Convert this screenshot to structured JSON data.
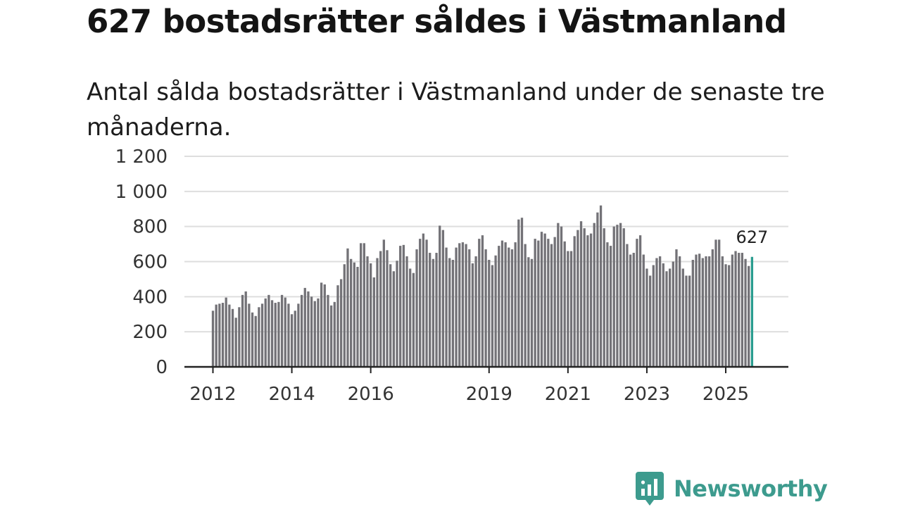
{
  "title": "627 bostadsrätter såldes i Västmanland",
  "subtitle": "Antal sålda bostadsrätter i Västmanland under de senaste tre månaderna.",
  "brand": {
    "name": "Newsworthy",
    "color": "#3d9b8e"
  },
  "colors": {
    "bar": "#737277",
    "highlight": "#2a9d8f",
    "grid": "#dedede",
    "axis": "#222222"
  },
  "chart_data": {
    "type": "bar",
    "title": "627 bostadsrätter såldes i Västmanland",
    "xlabel": "",
    "ylabel": "",
    "ylim": [
      0,
      1200
    ],
    "yticks": [
      0,
      200,
      400,
      600,
      800,
      1000,
      1200
    ],
    "ytick_labels": [
      "0",
      "200",
      "400",
      "600",
      "800",
      "1 000",
      "1 200"
    ],
    "xticks": [
      {
        "label": "2012",
        "index": 0
      },
      {
        "label": "2014",
        "index": 24
      },
      {
        "label": "2016",
        "index": 48
      },
      {
        "label": "2019",
        "index": 84
      },
      {
        "label": "2021",
        "index": 108
      },
      {
        "label": "2023",
        "index": 132
      },
      {
        "label": "2025",
        "index": 156
      }
    ],
    "start": "2012-01",
    "highlight_label": "627",
    "values": [
      320,
      355,
      360,
      365,
      395,
      355,
      330,
      280,
      340,
      410,
      430,
      360,
      310,
      290,
      340,
      360,
      390,
      410,
      380,
      365,
      370,
      410,
      395,
      360,
      300,
      320,
      360,
      410,
      450,
      430,
      400,
      375,
      390,
      480,
      470,
      410,
      350,
      370,
      465,
      500,
      585,
      675,
      615,
      595,
      570,
      705,
      705,
      630,
      590,
      510,
      620,
      660,
      725,
      665,
      585,
      545,
      605,
      690,
      695,
      630,
      560,
      535,
      670,
      730,
      760,
      725,
      650,
      615,
      650,
      805,
      780,
      680,
      620,
      610,
      680,
      705,
      710,
      700,
      670,
      590,
      630,
      730,
      750,
      670,
      610,
      580,
      635,
      690,
      720,
      710,
      680,
      670,
      710,
      840,
      850,
      700,
      625,
      615,
      730,
      720,
      770,
      760,
      730,
      700,
      740,
      820,
      800,
      715,
      660,
      660,
      745,
      780,
      830,
      790,
      750,
      760,
      820,
      880,
      920,
      790,
      710,
      690,
      800,
      810,
      820,
      790,
      700,
      640,
      650,
      730,
      750,
      640,
      560,
      520,
      580,
      620,
      630,
      590,
      545,
      560,
      600,
      670,
      630,
      560,
      520,
      520,
      610,
      640,
      645,
      620,
      630,
      630,
      670,
      725,
      725,
      630,
      585,
      580,
      640,
      660,
      650,
      650,
      615,
      575,
      627
    ]
  }
}
